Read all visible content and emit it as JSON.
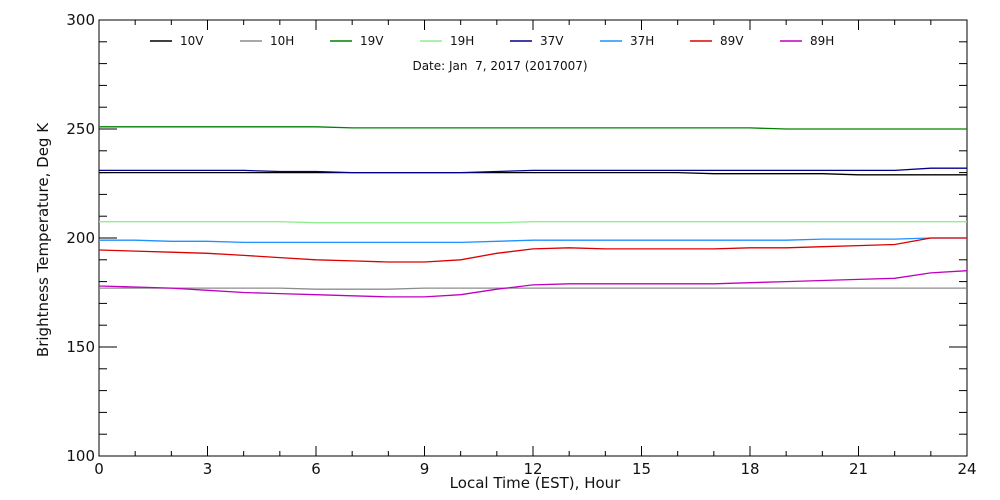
{
  "chart_data": {
    "type": "line",
    "title": "",
    "annotation": "Date: Jan  7, 2017 (2017007)",
    "xlabel": "Local Time (EST), Hour",
    "ylabel": "Brightness Temperature, Deg K",
    "xlim": [
      0,
      24
    ],
    "ylim": [
      100,
      300
    ],
    "xticks": [
      0,
      3,
      6,
      9,
      12,
      15,
      18,
      21,
      24
    ],
    "yticks": [
      100,
      150,
      200,
      250,
      300
    ],
    "grid": false,
    "legend_position": "top",
    "x": [
      0,
      1,
      2,
      3,
      4,
      5,
      6,
      7,
      8,
      9,
      10,
      11,
      12,
      13,
      14,
      15,
      16,
      17,
      18,
      19,
      20,
      21,
      22,
      23,
      24
    ],
    "series": [
      {
        "name": "10V",
        "color": "#000000",
        "values": [
          230,
          230,
          230,
          230,
          230,
          230,
          230,
          230,
          230,
          230,
          230,
          230,
          230,
          230,
          230,
          230,
          230,
          229.5,
          229.5,
          229.5,
          229.5,
          229,
          229,
          229,
          229
        ]
      },
      {
        "name": "10H",
        "color": "#8c8c8c",
        "values": [
          177,
          177,
          177,
          177,
          177,
          177,
          176.5,
          176.5,
          176.5,
          177,
          177,
          177,
          177,
          177,
          177,
          177,
          177,
          177,
          177,
          177,
          177,
          177,
          177,
          177,
          177
        ]
      },
      {
        "name": "19V",
        "color": "#008000",
        "values": [
          251,
          251,
          251,
          251,
          251,
          251,
          251,
          250.5,
          250.5,
          250.5,
          250.5,
          250.5,
          250.5,
          250.5,
          250.5,
          250.5,
          250.5,
          250.5,
          250.5,
          250,
          250,
          250,
          250,
          250,
          250
        ]
      },
      {
        "name": "19H",
        "color": "#90ee90",
        "values": [
          207.5,
          207.5,
          207.5,
          207.5,
          207.5,
          207.5,
          207,
          207,
          207,
          207,
          207,
          207,
          207.5,
          207.5,
          207.5,
          207.5,
          207.5,
          207.5,
          207.5,
          207.5,
          207.5,
          207.5,
          207.5,
          207.5,
          207.5
        ]
      },
      {
        "name": "37V",
        "color": "#00008b",
        "values": [
          231,
          231,
          231,
          231,
          231,
          230.5,
          230.5,
          230,
          230,
          230,
          230,
          230.5,
          231,
          231,
          231,
          231,
          231,
          231,
          231,
          231,
          231,
          231,
          231,
          232,
          232
        ]
      },
      {
        "name": "37H",
        "color": "#1e90ff",
        "values": [
          199,
          199,
          198.5,
          198.5,
          198,
          198,
          198,
          198,
          198,
          198,
          198,
          198.5,
          199,
          199,
          199,
          199,
          199,
          199,
          199,
          199,
          199.5,
          199.5,
          199.5,
          200,
          200
        ]
      },
      {
        "name": "89V",
        "color": "#dd0000",
        "values": [
          194.5,
          194,
          193.5,
          193,
          192,
          191,
          190,
          189.5,
          189,
          189,
          190,
          193,
          195,
          195.5,
          195,
          195,
          195,
          195,
          195.5,
          195.5,
          196,
          196.5,
          197,
          200,
          200
        ]
      },
      {
        "name": "89H",
        "color": "#c000c0",
        "values": [
          178,
          177.5,
          177,
          176,
          175,
          174.5,
          174,
          173.5,
          173,
          173,
          174,
          176.5,
          178.5,
          179,
          179,
          179,
          179,
          179,
          179.5,
          180,
          180.5,
          181,
          181.5,
          184,
          185
        ]
      }
    ]
  }
}
